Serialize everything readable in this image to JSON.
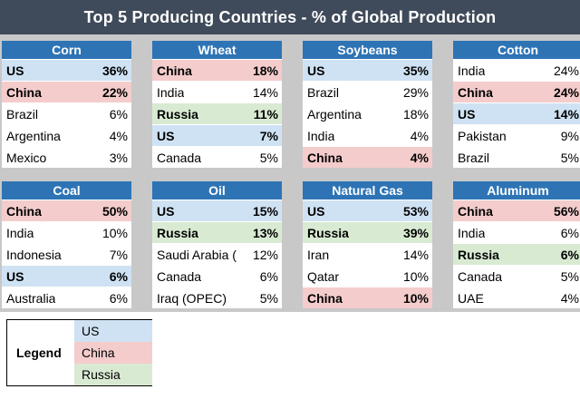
{
  "title": "Top 5 Producing Countries - % of Global Production",
  "colors": {
    "US": "#cfe2f3",
    "China": "#f4cccc",
    "Russia": "#d9ead3",
    "header": "#2e74b5",
    "banner": "#3f4a5a"
  },
  "panels": [
    {
      "name": "Corn",
      "rows": [
        {
          "country": "US",
          "value": "36%",
          "highlight": "US"
        },
        {
          "country": "China",
          "value": "22%",
          "highlight": "China"
        },
        {
          "country": "Brazil",
          "value": "6%",
          "highlight": ""
        },
        {
          "country": "Argentina",
          "value": "4%",
          "highlight": ""
        },
        {
          "country": "Mexico",
          "value": "3%",
          "highlight": ""
        }
      ]
    },
    {
      "name": "Wheat",
      "rows": [
        {
          "country": "China",
          "value": "18%",
          "highlight": "China"
        },
        {
          "country": "India",
          "value": "14%",
          "highlight": ""
        },
        {
          "country": "Russia",
          "value": "11%",
          "highlight": "Russia"
        },
        {
          "country": "US",
          "value": "7%",
          "highlight": "US"
        },
        {
          "country": "Canada",
          "value": "5%",
          "highlight": ""
        }
      ]
    },
    {
      "name": "Soybeans",
      "rows": [
        {
          "country": "US",
          "value": "35%",
          "highlight": "US"
        },
        {
          "country": "Brazil",
          "value": "29%",
          "highlight": ""
        },
        {
          "country": "Argentina",
          "value": "18%",
          "highlight": ""
        },
        {
          "country": "India",
          "value": "4%",
          "highlight": ""
        },
        {
          "country": "China",
          "value": "4%",
          "highlight": "China"
        }
      ]
    },
    {
      "name": "Cotton",
      "rows": [
        {
          "country": "India",
          "value": "24%",
          "highlight": ""
        },
        {
          "country": "China",
          "value": "24%",
          "highlight": "China"
        },
        {
          "country": "US",
          "value": "14%",
          "highlight": "US"
        },
        {
          "country": "Pakistan",
          "value": "9%",
          "highlight": ""
        },
        {
          "country": "Brazil",
          "value": "5%",
          "highlight": ""
        }
      ]
    },
    {
      "name": "Coal",
      "rows": [
        {
          "country": "China",
          "value": "50%",
          "highlight": "China"
        },
        {
          "country": "India",
          "value": "10%",
          "highlight": ""
        },
        {
          "country": "Indonesia",
          "value": "7%",
          "highlight": ""
        },
        {
          "country": "US",
          "value": "6%",
          "highlight": "US"
        },
        {
          "country": "Australia",
          "value": "6%",
          "highlight": ""
        }
      ]
    },
    {
      "name": "Oil",
      "rows": [
        {
          "country": "US",
          "value": "15%",
          "highlight": "US"
        },
        {
          "country": "Russia",
          "value": "13%",
          "highlight": "Russia"
        },
        {
          "country": "Saudi Arabia (",
          "value": "12%",
          "highlight": ""
        },
        {
          "country": "Canada",
          "value": "6%",
          "highlight": ""
        },
        {
          "country": "Iraq (OPEC)",
          "value": "5%",
          "highlight": ""
        }
      ]
    },
    {
      "name": "Natural Gas",
      "rows": [
        {
          "country": "US",
          "value": "53%",
          "highlight": "US"
        },
        {
          "country": "Russia",
          "value": "39%",
          "highlight": "Russia"
        },
        {
          "country": "Iran",
          "value": "14%",
          "highlight": ""
        },
        {
          "country": "Qatar",
          "value": "10%",
          "highlight": ""
        },
        {
          "country": "China",
          "value": "10%",
          "highlight": "China"
        }
      ]
    },
    {
      "name": "Aluminum",
      "rows": [
        {
          "country": "China",
          "value": "56%",
          "highlight": "China"
        },
        {
          "country": "India",
          "value": "6%",
          "highlight": ""
        },
        {
          "country": "Russia",
          "value": "6%",
          "highlight": "Russia"
        },
        {
          "country": "Canada",
          "value": "5%",
          "highlight": ""
        },
        {
          "country": "UAE",
          "value": "4%",
          "highlight": ""
        }
      ]
    }
  ],
  "legend": {
    "title": "Legend",
    "items": [
      {
        "label": "US",
        "key": "US"
      },
      {
        "label": "China",
        "key": "China"
      },
      {
        "label": "Russia",
        "key": "Russia"
      }
    ]
  }
}
